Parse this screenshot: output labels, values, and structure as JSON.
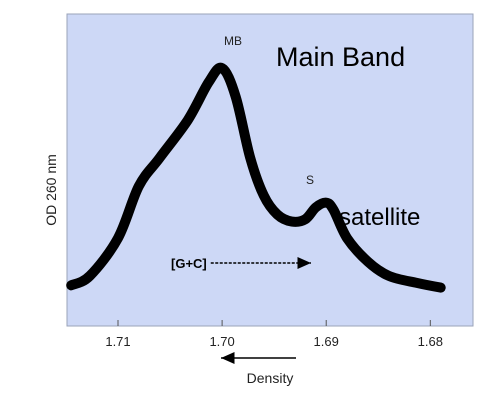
{
  "chart_data": {
    "type": "line",
    "x_direction": "decreasing",
    "xlabel": "Density",
    "ylabel": "OD  260 nm",
    "x_ticks": [
      "1.71",
      "1.70",
      "1.69",
      "1.68"
    ],
    "x_tick_values": [
      1.71,
      1.7,
      1.69,
      1.68
    ],
    "xlim": [
      1.7149,
      1.6759
    ],
    "ylim": [
      0,
      1
    ],
    "grid": false,
    "series": [
      {
        "x": [
          1.7145,
          1.7127,
          1.71,
          1.708,
          1.706,
          1.7033,
          1.7013,
          1.7,
          1.6987,
          1.6973,
          1.696,
          1.6947,
          1.6933,
          1.692,
          1.691,
          1.69,
          1.6893,
          1.688,
          1.686,
          1.684,
          1.6813,
          1.679
        ],
        "values": [
          0.02,
          0.06,
          0.22,
          0.44,
          0.56,
          0.72,
          0.88,
          0.94,
          0.82,
          0.56,
          0.4,
          0.32,
          0.29,
          0.3,
          0.35,
          0.37,
          0.34,
          0.22,
          0.12,
          0.06,
          0.03,
          0.01
        ]
      }
    ],
    "annotations": {
      "main_peak_tag": "MB",
      "satellite_peak_tag": "S",
      "main_band": "Main Band",
      "satellite": "satellite",
      "gc_arrow": "[G+C] ------------>"
    },
    "colors": {
      "plot_background": "#cdd8f6",
      "curve": "#000000",
      "border": "#9aa3b8"
    }
  }
}
